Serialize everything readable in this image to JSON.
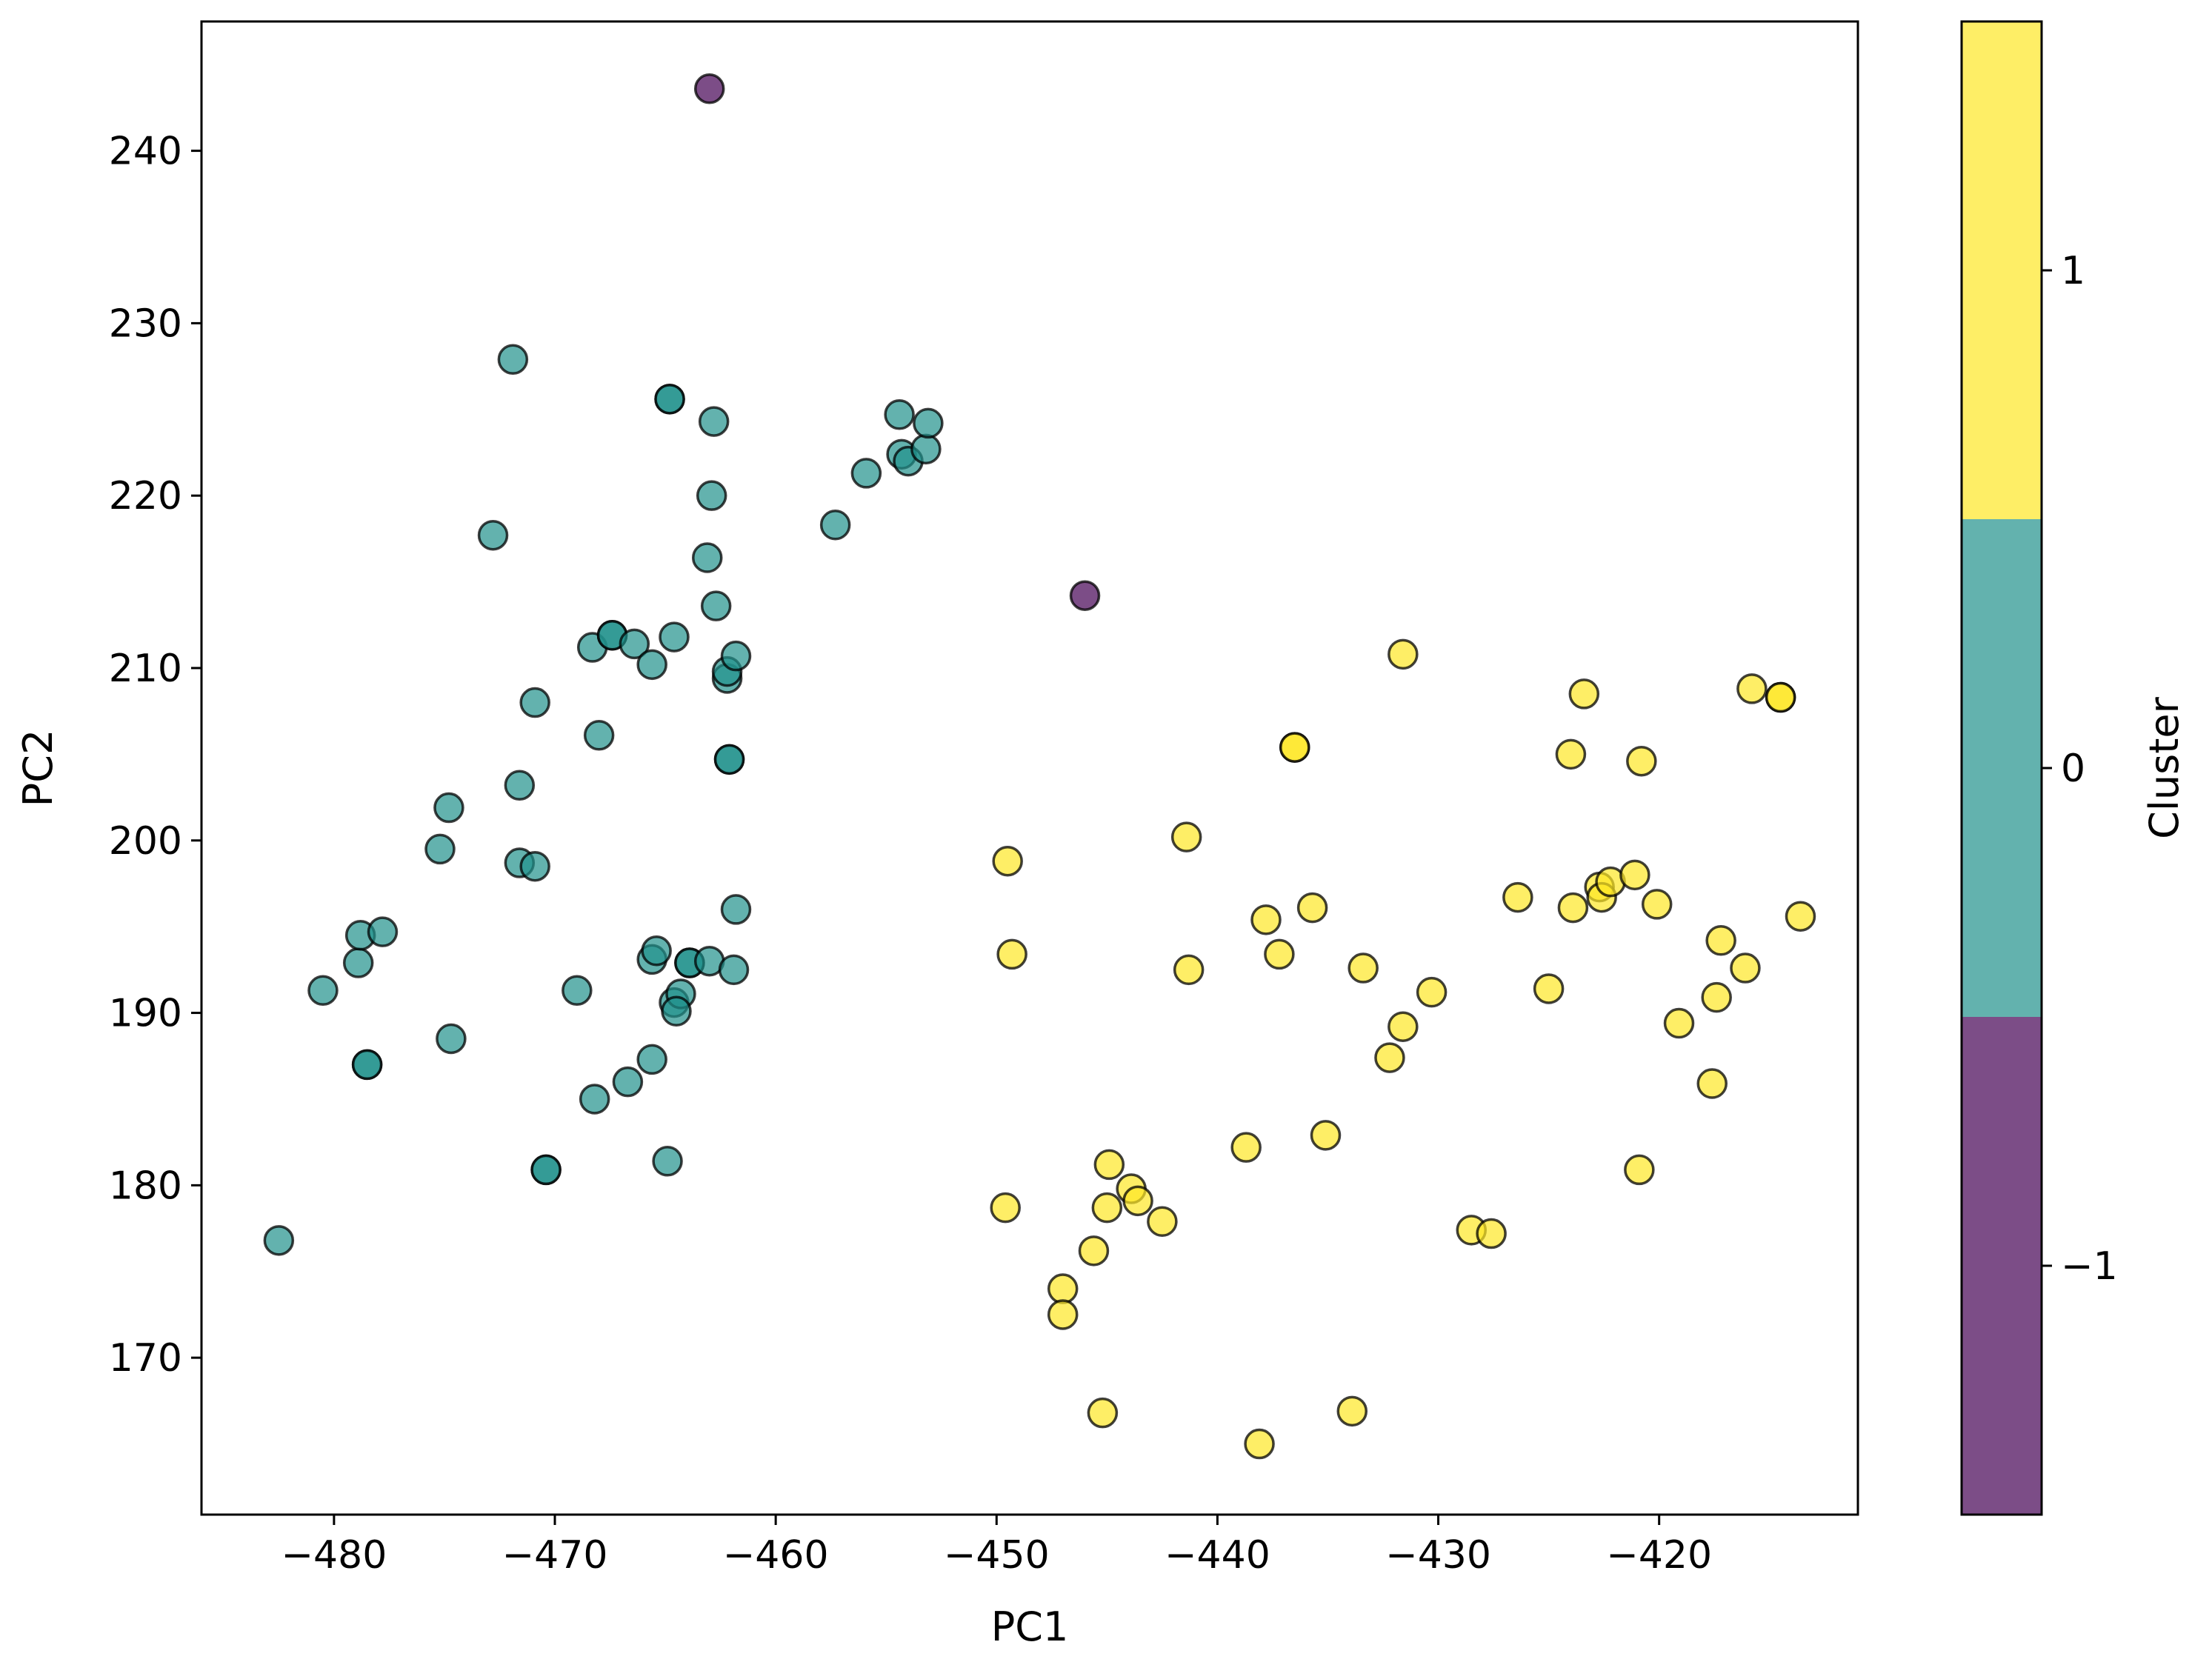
{
  "chart_data": {
    "type": "scatter",
    "xlabel": "PC1",
    "ylabel": "PC2",
    "xlim": [
      -486,
      -411
    ],
    "ylim": [
      160.9,
      247.5
    ],
    "xticks": [
      -480,
      -470,
      -460,
      -450,
      -440,
      -430,
      -420
    ],
    "xtick_labels": [
      "−480",
      "−470",
      "−460",
      "−450",
      "−440",
      "−430",
      "−420"
    ],
    "yticks": [
      170,
      180,
      190,
      200,
      210,
      220,
      230,
      240
    ],
    "ytick_labels": [
      "170",
      "180",
      "190",
      "200",
      "210",
      "220",
      "230",
      "240"
    ],
    "grid": false,
    "marker_alpha": 0.7,
    "colorbar": {
      "label": "Cluster",
      "ticks": [
        -1,
        0,
        1
      ],
      "tick_labels": [
        "−1",
        "0",
        "1"
      ],
      "range": [
        -1.5,
        1.5
      ],
      "colors": {
        "-1": "#440154",
        "0": "#21918c",
        "1": "#fde725"
      }
    },
    "series": [
      {
        "cluster": -1,
        "color": "#440154",
        "points": [
          [
            -463.0,
            243.6
          ],
          [
            -446.0,
            214.2
          ]
        ]
      },
      {
        "cluster": 0,
        "color": "#21918c",
        "points": [
          [
            -482.5,
            176.8
          ],
          [
            -480.5,
            191.3
          ],
          [
            -478.9,
            192.9
          ],
          [
            -478.8,
            194.5
          ],
          [
            -477.8,
            194.7
          ],
          [
            -478.5,
            187.0
          ],
          [
            -478.5,
            187.0
          ],
          [
            -474.8,
            201.9
          ],
          [
            -475.2,
            199.5
          ],
          [
            -474.7,
            188.5
          ],
          [
            -471.9,
            227.9
          ],
          [
            -472.8,
            217.7
          ],
          [
            -471.6,
            198.7
          ],
          [
            -471.6,
            203.2
          ],
          [
            -470.9,
            198.5
          ],
          [
            -470.9,
            208.0
          ],
          [
            -470.4,
            180.9
          ],
          [
            -470.4,
            180.9
          ],
          [
            -469.0,
            191.3
          ],
          [
            -468.2,
            185.0
          ],
          [
            -468.0,
            206.1
          ],
          [
            -468.3,
            211.2
          ],
          [
            -467.4,
            211.9
          ],
          [
            -467.4,
            211.9
          ],
          [
            -466.4,
            211.4
          ],
          [
            -466.7,
            186.0
          ],
          [
            -465.6,
            210.2
          ],
          [
            -465.6,
            193.1
          ],
          [
            -465.6,
            187.3
          ],
          [
            -465.4,
            193.6
          ],
          [
            -464.9,
            181.4
          ],
          [
            -464.8,
            225.6
          ],
          [
            -464.8,
            225.6
          ],
          [
            -464.6,
            211.8
          ],
          [
            -464.6,
            190.6
          ],
          [
            -464.3,
            191.1
          ],
          [
            -464.5,
            190.1
          ],
          [
            -463.9,
            192.9
          ],
          [
            -463.9,
            192.9
          ],
          [
            -463.0,
            193.0
          ],
          [
            -462.8,
            224.3
          ],
          [
            -462.9,
            220.0
          ],
          [
            -463.1,
            216.4
          ],
          [
            -462.7,
            213.6
          ],
          [
            -462.2,
            209.4
          ],
          [
            -462.2,
            209.8
          ],
          [
            -462.1,
            204.7
          ],
          [
            -462.1,
            204.7
          ],
          [
            -461.8,
            210.7
          ],
          [
            -461.8,
            196.0
          ],
          [
            -461.9,
            192.5
          ],
          [
            -457.3,
            218.3
          ],
          [
            -455.9,
            221.3
          ],
          [
            -454.4,
            224.7
          ],
          [
            -454.3,
            222.4
          ],
          [
            -454.0,
            222.0
          ],
          [
            -453.2,
            222.7
          ],
          [
            -453.1,
            224.2
          ]
        ]
      },
      {
        "cluster": 1,
        "color": "#fde725",
        "points": [
          [
            -449.5,
            198.8
          ],
          [
            -449.3,
            193.4
          ],
          [
            -449.6,
            178.7
          ],
          [
            -447.0,
            174.0
          ],
          [
            -447.0,
            172.5
          ],
          [
            -445.6,
            176.2
          ],
          [
            -445.2,
            166.8
          ],
          [
            -445.0,
            178.7
          ],
          [
            -444.9,
            181.2
          ],
          [
            -443.9,
            179.8
          ],
          [
            -443.6,
            179.1
          ],
          [
            -442.5,
            177.9
          ],
          [
            -441.4,
            200.2
          ],
          [
            -441.3,
            192.5
          ],
          [
            -438.7,
            182.2
          ],
          [
            -438.1,
            165.0
          ],
          [
            -437.8,
            195.4
          ],
          [
            -437.2,
            193.4
          ],
          [
            -436.5,
            205.4
          ],
          [
            -436.5,
            205.4
          ],
          [
            -435.7,
            196.1
          ],
          [
            -435.1,
            182.9
          ],
          [
            -433.9,
            166.9
          ],
          [
            -433.4,
            192.6
          ],
          [
            -432.2,
            187.4
          ],
          [
            -431.6,
            189.2
          ],
          [
            -431.6,
            210.8
          ],
          [
            -430.3,
            191.2
          ],
          [
            -428.5,
            177.4
          ],
          [
            -427.6,
            177.2
          ],
          [
            -426.4,
            196.7
          ],
          [
            -425.0,
            191.4
          ],
          [
            -424.0,
            205.0
          ],
          [
            -423.9,
            196.1
          ],
          [
            -423.4,
            208.5
          ],
          [
            -422.7,
            197.3
          ],
          [
            -422.6,
            196.7
          ],
          [
            -422.2,
            197.6
          ],
          [
            -421.1,
            198.0
          ],
          [
            -420.8,
            204.6
          ],
          [
            -420.9,
            180.9
          ],
          [
            -420.1,
            196.3
          ],
          [
            -419.1,
            189.4
          ],
          [
            -417.6,
            185.9
          ],
          [
            -417.4,
            190.9
          ],
          [
            -417.2,
            194.2
          ],
          [
            -416.1,
            192.6
          ],
          [
            -415.8,
            208.8
          ],
          [
            -414.5,
            208.3
          ],
          [
            -414.5,
            208.3
          ],
          [
            -413.6,
            195.6
          ]
        ]
      }
    ]
  }
}
